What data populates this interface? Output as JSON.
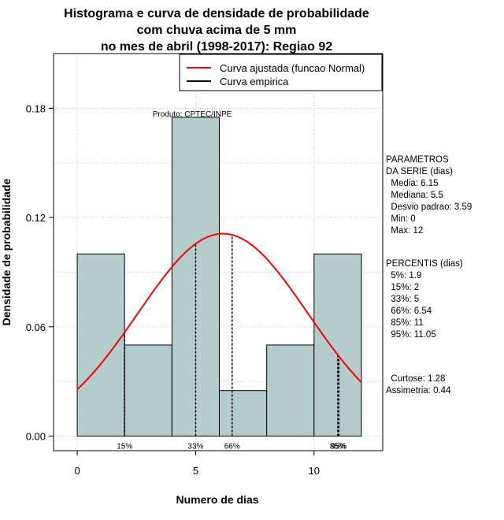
{
  "chart_data": {
    "type": "bar",
    "title_lines": [
      "Histograma e curva de densidade de probabilidade",
      "com chuva acima de 5 mm",
      "no mes de abril (1998-2017): Regiao 92"
    ],
    "xlabel": "Numero de dias",
    "ylabel": "Densidade de probabilidade",
    "xlim": [
      -1,
      12.9
    ],
    "ylim": [
      -0.008,
      0.21
    ],
    "x_ticks": [
      0,
      5,
      10
    ],
    "y_ticks": [
      0.0,
      0.06,
      0.12,
      0.18
    ],
    "y_tick_labels": [
      "0.00",
      "0.06",
      "0.12",
      "0.18"
    ],
    "grid": true,
    "bins": [
      {
        "start": 0,
        "end": 2,
        "density": 0.1
      },
      {
        "start": 2,
        "end": 4,
        "density": 0.05
      },
      {
        "start": 4,
        "end": 6,
        "density": 0.175
      },
      {
        "start": 6,
        "end": 8,
        "density": 0.025
      },
      {
        "start": 8,
        "end": 10,
        "density": 0.05
      },
      {
        "start": 10,
        "end": 12,
        "density": 0.1
      }
    ],
    "normal_curve": {
      "mean": 6.15,
      "sd": 3.59,
      "color": "#ff0000",
      "x_range": [
        0,
        12
      ]
    },
    "percentile_lines": [
      {
        "label": "15%",
        "x": 2
      },
      {
        "label": "33%",
        "x": 5
      },
      {
        "label": "66%",
        "x": 6.54
      },
      {
        "label": "85%",
        "x": 11
      },
      {
        "label": "95%",
        "x": 11.05
      }
    ],
    "bar_color": "#b4cccc",
    "legend": {
      "position": "top-right",
      "items": [
        {
          "label": "Curva ajustada (funcao Normal)",
          "color": "#ff0000"
        },
        {
          "label": "Curva empirica",
          "color": "#000000"
        }
      ]
    },
    "annotation": "Produto: CPTEC/INPE"
  },
  "stats_panel": {
    "parametros_lines": [
      "PARAMETROS",
      "DA SERIE (dias)",
      "  Media: 6.15",
      "  Mediana: 5.5",
      "  Desvio padrao: 3.59",
      "  Min: 0",
      "  Max: 12"
    ],
    "percentis_lines": [
      "PERCENTIS (dias)",
      "  5%: 1.9",
      "  15%: 2",
      "  33%: 5",
      "  66%: 6.54",
      "  85%: 11",
      "  95%: 11.05"
    ],
    "shape_lines": [
      "  Curtose: 1.28",
      "Assimetria: 0.44"
    ]
  }
}
